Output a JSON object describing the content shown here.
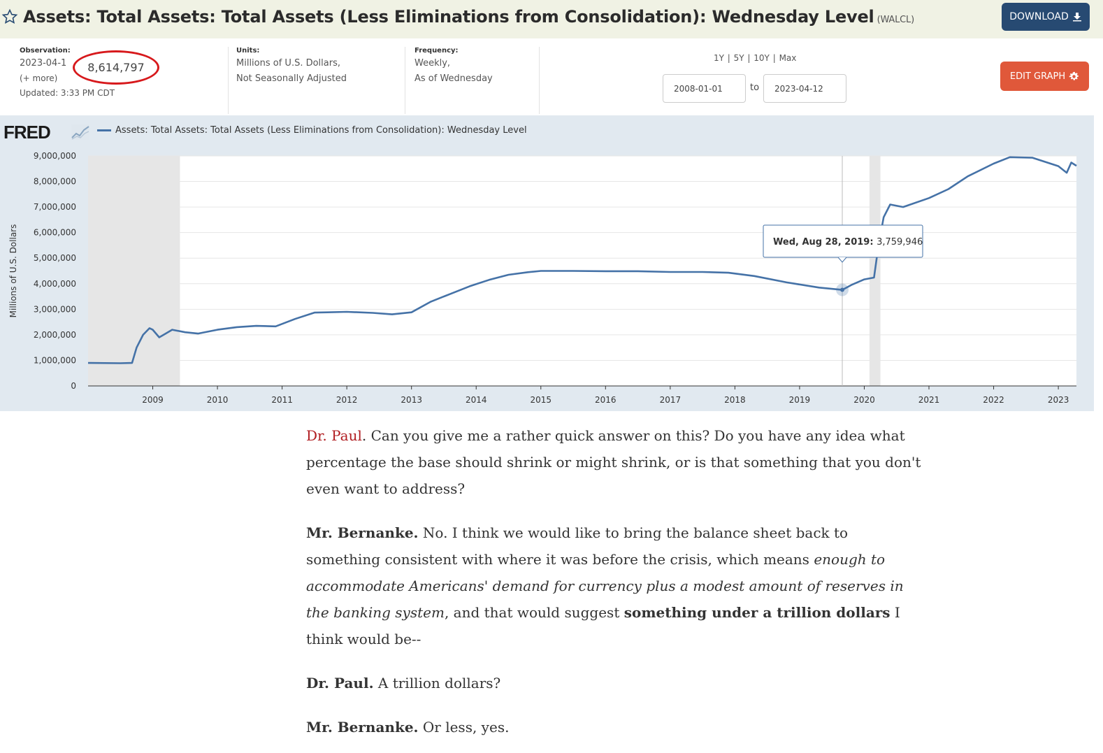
{
  "header": {
    "title": "Assets: Total Assets: Total Assets (Less Eliminations from Consolidation): Wednesday Level",
    "series_code": "(WALCL)",
    "download_label": "DOWNLOAD"
  },
  "meta": {
    "observation_label": "Observation:",
    "observation_date": "2023-04-1",
    "observation_value": "8,614,797",
    "more_label": "(+ more)",
    "updated": "Updated: 3:33 PM CDT",
    "units_label": "Units:",
    "units_line1": "Millions of U.S. Dollars,",
    "units_line2": "Not Seasonally Adjusted",
    "frequency_label": "Frequency:",
    "frequency_line1": "Weekly,",
    "frequency_line2": "As of Wednesday",
    "range_links": [
      "1Y",
      "5Y",
      "10Y",
      "Max"
    ],
    "date_start": "2008-01-01",
    "to_label": "to",
    "date_end": "2023-04-12",
    "edit_graph_label": "EDIT GRAPH"
  },
  "chart_logo": "FRED",
  "chart_data": {
    "type": "line",
    "legend": "Assets: Total Assets: Total Assets (Less Eliminations from Consolidation): Wednesday Level",
    "ylabel": "Millions of U.S. Dollars",
    "ylim": [
      0,
      9000000
    ],
    "y_ticks": [
      "0",
      "1,000,000",
      "2,000,000",
      "3,000,000",
      "4,000,000",
      "5,000,000",
      "6,000,000",
      "7,000,000",
      "8,000,000",
      "9,000,000"
    ],
    "x_ticks": [
      "2009",
      "2010",
      "2011",
      "2012",
      "2013",
      "2014",
      "2015",
      "2016",
      "2017",
      "2018",
      "2019",
      "2020",
      "2021",
      "2022",
      "2023"
    ],
    "xlim": [
      2008.0,
      2023.28
    ],
    "recessions": [
      [
        2008.0,
        2009.42
      ],
      [
        2020.08,
        2020.25
      ]
    ],
    "series": [
      {
        "x": [
          2008.0,
          2008.5,
          2008.68,
          2008.75,
          2008.85,
          2008.95,
          2009.0,
          2009.1,
          2009.2,
          2009.3,
          2009.5,
          2009.7,
          2010.0,
          2010.3,
          2010.6,
          2010.9,
          2011.2,
          2011.5,
          2011.7,
          2012.0,
          2012.4,
          2012.7,
          2013.0,
          2013.3,
          2013.6,
          2013.9,
          2014.2,
          2014.5,
          2014.8,
          2015.0,
          2015.5,
          2016.0,
          2016.5,
          2017.0,
          2017.5,
          2017.9,
          2018.3,
          2018.8,
          2019.3,
          2019.66,
          2019.8,
          2020.0,
          2020.15,
          2020.22,
          2020.3,
          2020.4,
          2020.6,
          2021.0,
          2021.3,
          2021.6,
          2022.0,
          2022.25,
          2022.6,
          2023.0,
          2023.13,
          2023.2,
          2023.28
        ],
        "y": [
          900000,
          890000,
          900000,
          1500000,
          2000000,
          2260000,
          2200000,
          1900000,
          2050000,
          2200000,
          2100000,
          2050000,
          2200000,
          2300000,
          2350000,
          2330000,
          2620000,
          2870000,
          2880000,
          2900000,
          2860000,
          2800000,
          2880000,
          3300000,
          3600000,
          3900000,
          4150000,
          4350000,
          4450000,
          4500000,
          4500000,
          4490000,
          4490000,
          4460000,
          4460000,
          4430000,
          4300000,
          4050000,
          3850000,
          3760000,
          3950000,
          4170000,
          4240000,
          5500000,
          6600000,
          7100000,
          7000000,
          7350000,
          7700000,
          8200000,
          8700000,
          8950000,
          8930000,
          8600000,
          8340000,
          8740000,
          8614797
        ]
      }
    ],
    "tooltip": {
      "date": "Wed, Aug 28, 2019:",
      "value": "3,759,946",
      "x": 2019.66,
      "y": 3759946
    }
  },
  "article": {
    "p1_speaker": "Dr. Paul",
    "p1_text": ". Can you give me a rather quick answer on this? Do you have any idea what percentage the base should shrink or might shrink, or is that something that you don't even want to address?",
    "p2_speaker": "Mr. Bernanke.",
    "p2_text_a": " No. I think we would like to bring the balance sheet back to something consistent with where it was before the crisis, which means ",
    "p2_em": "enough to accommodate Americans' demand for currency plus a modest amount of reserves in the banking system",
    "p2_text_b": ", and that would suggest ",
    "p2_strong": "something under a trillion dollars",
    "p2_text_c": " I think would be--",
    "p3_speaker": "Dr. Paul.",
    "p3_text": " A trillion dollars?",
    "p4_speaker": "Mr. Bernanke.",
    "p4_text": " Or less, yes."
  },
  "colors": {
    "line": "#4572a7",
    "recession": "#e6e6e6",
    "panel": "#e1e9f0",
    "download": "#274a72",
    "edit": "#e0583a",
    "highlight": "#d7191c"
  }
}
